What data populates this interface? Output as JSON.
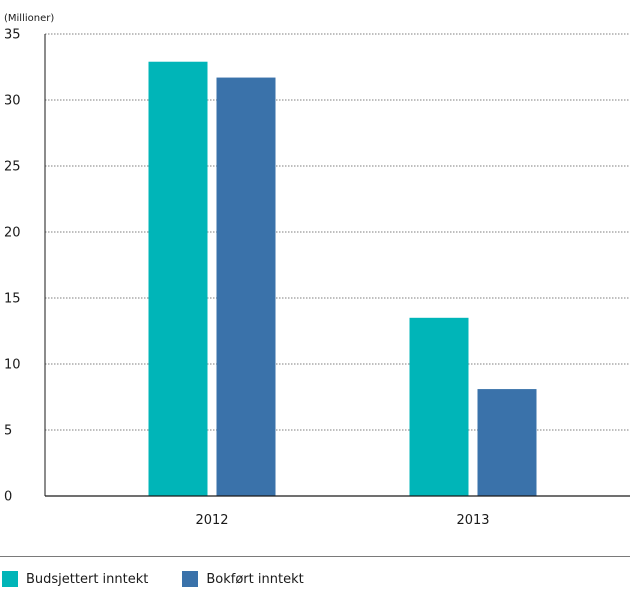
{
  "chart_data": {
    "type": "bar",
    "unit_label": "(Millioner)",
    "categories": [
      "2012",
      "2013"
    ],
    "series": [
      {
        "name": "Budsjettert inntekt",
        "color": "#00B5B8",
        "values": [
          32.9,
          13.5
        ]
      },
      {
        "name": "Bokført inntekt",
        "color": "#3A72AA",
        "values": [
          31.7,
          8.1
        ]
      }
    ],
    "ylim": [
      0,
      35
    ],
    "yticks": [
      "0",
      "5",
      "10",
      "15",
      "20",
      "25",
      "30",
      "35"
    ],
    "grid": "horizontal-dotted",
    "legend_position": "bottom-left"
  }
}
